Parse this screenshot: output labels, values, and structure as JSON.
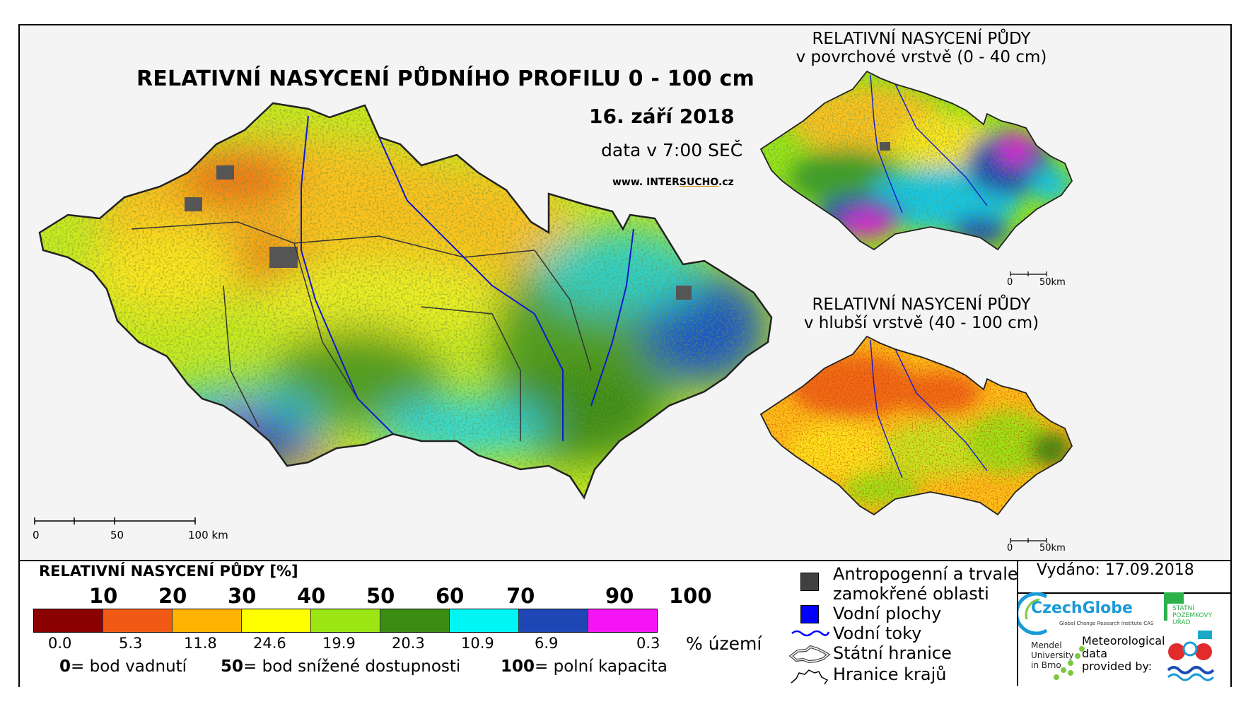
{
  "main_map": {
    "title": "RELATIVNÍ NASYCENÍ PŮDNÍHO PROFILU 0 - 100 cm",
    "date": "16. září 2018",
    "data_time": "data v 7:00 SEČ",
    "website_prefix": "www. INTER",
    "website_mid": "SUCHO",
    "website_suffix": ".cz",
    "scale_labels": [
      "0",
      "50",
      "100 km"
    ]
  },
  "inset_top": {
    "title_line1": "RELATIVNÍ NASYCENÍ PŮDY",
    "title_line2": "v povrchové vrstvě (0 - 40 cm)",
    "scale_labels": [
      "0",
      "50km"
    ]
  },
  "inset_bottom": {
    "title_line1": "RELATIVNÍ NASYCENÍ PŮDY",
    "title_line2": "v hlubší vrstvě (40 - 100 cm)",
    "scale_labels": [
      "0",
      "50km"
    ]
  },
  "legend": {
    "title": "RELATIVNÍ NASYCENÍ PŮDY [%]",
    "breaks": [
      "10",
      "20",
      "30",
      "40",
      "50",
      "60",
      "70",
      "90",
      "100"
    ],
    "classes": [
      {
        "color": "#8b0000",
        "percent": "0.0"
      },
      {
        "color": "#f05a14",
        "percent": "5.3"
      },
      {
        "color": "#ffb300",
        "percent": "11.8"
      },
      {
        "color": "#ffff00",
        "percent": "24.6"
      },
      {
        "color": "#9be614",
        "percent": "19.9"
      },
      {
        "color": "#3c8c14",
        "percent": "20.3"
      },
      {
        "color": "#00f5f5",
        "percent": "10.9"
      },
      {
        "color": "#1e46b4",
        "percent": "6.9"
      },
      {
        "color": "#f514f5",
        "percent": "0.3"
      }
    ],
    "percent_unit": "% území",
    "definitions": [
      {
        "value": "0",
        "text": "= bod vadnutí"
      },
      {
        "value": "50",
        "text": "= bod snížené dostupnosti"
      },
      {
        "value": "100",
        "text": "= polní kapacita"
      }
    ]
  },
  "symbols": [
    {
      "label_line1": "Antropogenní a trvale",
      "label_line2": "zamokřené oblasti",
      "color": "#404040",
      "icon": "gray-square-icon"
    },
    {
      "label_line1": "Vodní plochy",
      "color": "#0000ff",
      "icon": "blue-square-icon"
    },
    {
      "label_line1": "Vodní toky",
      "color": "#0000ff",
      "icon": "river-line-icon"
    },
    {
      "label_line1": "Státní hranice",
      "icon": "state-border-icon"
    },
    {
      "label_line1": "Hranice krajů",
      "icon": "region-border-icon"
    }
  ],
  "issued": "Vydáno: 17.09.2018",
  "logos": {
    "czechglobe": "CzechGlobe",
    "czechglobe_sub": "Global Change Research Institute CAS",
    "spu_line1": "STÁTNÍ",
    "spu_line2": "POZEMKOVÝ",
    "spu_line3": "ÚŘAD",
    "mendel_line1": "Mendel",
    "mendel_line2": "University",
    "mendel_line3": "in Brno",
    "meteo_line1": "Meteorological",
    "meteo_line2": "data",
    "meteo_line3": "provided by:"
  }
}
